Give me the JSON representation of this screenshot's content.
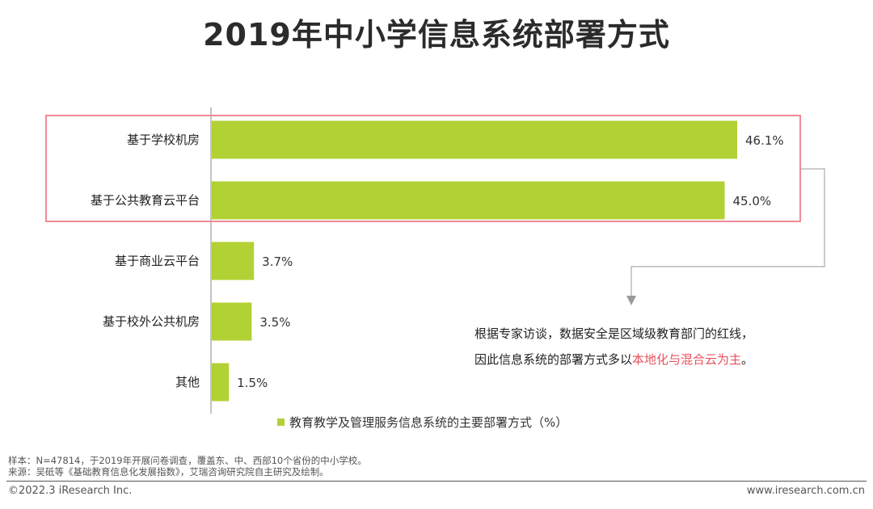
{
  "title": "2019年中小学信息系统部署方式",
  "chart_data": {
    "type": "bar",
    "orientation": "horizontal",
    "categories": [
      "基于学校机房",
      "基于公共教育云平台",
      "基于商业云平台",
      "基于校外公共机房",
      "其他"
    ],
    "series": [
      {
        "name": "教育教学及管理服务信息系统的主要部署方式（%）",
        "values": [
          46.1,
          45.0,
          3.7,
          3.5,
          1.5
        ],
        "value_labels": [
          "46.1%",
          "45.0%",
          "3.7%",
          "3.5%",
          "1.5%"
        ]
      }
    ],
    "xlim": [
      0,
      50
    ],
    "grid": false,
    "legend_position": "bottom",
    "bar_color": "#b1d135",
    "highlight_color": "#f08a96"
  },
  "annotation": {
    "line1": "根据专家访谈，数据安全是区域级教育部门的红线，",
    "line2_prefix": "因此信息系统的部署方式多以",
    "line2_highlight": "本地化与混合云为主",
    "line2_suffix": "。"
  },
  "footer": {
    "sample": "样本：N=47814，于2019年开展问卷调查，覆盖东、中、西部10个省份的中小学校。",
    "source": "来源：吴砥等《基础教育信息化发展指数》，艾瑞咨询研究院自主研究及绘制。",
    "copyright": "©2022.3 iResearch Inc.",
    "website": "www.iresearch.com.cn"
  }
}
